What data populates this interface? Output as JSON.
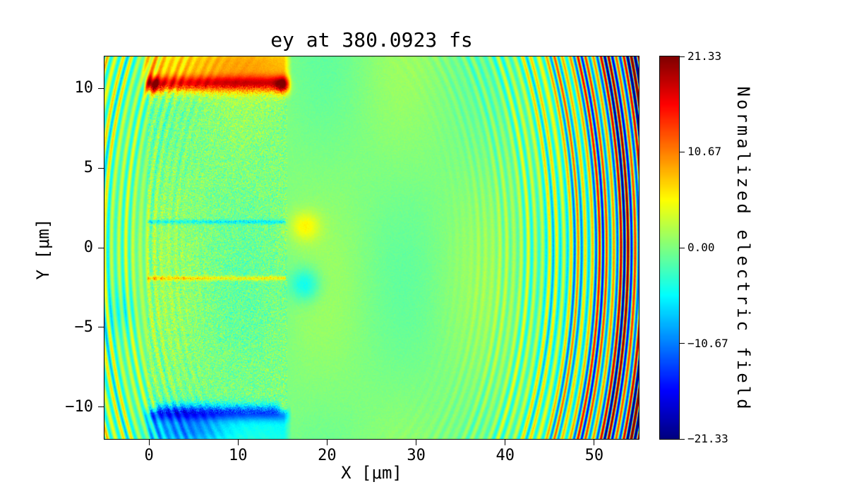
{
  "figure": {
    "background": "#ffffff"
  },
  "chart_data": {
    "type": "heatmap",
    "title": "ey at 380.0923 fs",
    "xlabel": "X [μm]",
    "ylabel": "Y [μm]",
    "xlim": [
      -5,
      55
    ],
    "ylim": [
      -12,
      12
    ],
    "grid": false,
    "x_ticks": {
      "values": [
        0,
        10,
        20,
        30,
        40,
        50
      ],
      "labels": [
        "0",
        "10",
        "20",
        "30",
        "40",
        "50"
      ]
    },
    "y_ticks": {
      "values": [
        10,
        5,
        0,
        -5,
        -10
      ],
      "labels": [
        "10",
        "5",
        "0",
        "−5",
        "−10"
      ]
    },
    "colormap": "jet",
    "colorbar": {
      "label": "Normalized electric field",
      "vmin": -21.33,
      "vmax": 21.33,
      "ticks": [
        21.33,
        10.67,
        0,
        -10.67,
        -21.33
      ],
      "tick_labels": [
        "21.33",
        "10.67",
        "0.00",
        "−10.67",
        "−21.33"
      ]
    },
    "field": {
      "background_level": 0,
      "noise_background": 0.6,
      "mottle_amp": 1.2,
      "target": {
        "x0": 0,
        "x1": 15.3,
        "y0": -10.2,
        "y1": 10.0,
        "noise": 4.5
      },
      "bands": [
        {
          "name": "top-hot-band",
          "x0": -0.2,
          "x1": 15.6,
          "yc": 10.3,
          "sigma": 0.5,
          "amp": 13
        },
        {
          "name": "top-halo",
          "x0": -0.5,
          "x1": 15.6,
          "yc": 11.5,
          "sigma": 1.5,
          "amp": 8
        },
        {
          "name": "bottom-cold-band",
          "x0": -0.2,
          "x1": 15.6,
          "yc": -10.35,
          "sigma": 0.5,
          "amp": -11
        },
        {
          "name": "bottom-halo",
          "x0": 0,
          "x1": 15.6,
          "yc": -11.5,
          "sigma": 1.3,
          "amp": -5
        }
      ],
      "lines": [
        {
          "name": "upper-channel-line",
          "yc": 1.62,
          "sigma": 0.13,
          "amp": -5,
          "x0": -0.2,
          "x1": 15.4
        },
        {
          "name": "lower-channel-line",
          "yc": -1.92,
          "sigma": 0.13,
          "amp": 6.5,
          "x0": -0.2,
          "x1": 15.4
        }
      ],
      "spots": [
        {
          "name": "target-top-left-hotspot",
          "x": 0.5,
          "y": 10.15,
          "sx": 0.8,
          "sy": 0.5,
          "amp": 9
        },
        {
          "name": "target-top-right-hotspot",
          "x": 15.0,
          "y": 10.15,
          "sx": 0.8,
          "sy": 0.5,
          "amp": 9
        },
        {
          "name": "target-bottom-left-hotspot",
          "x": 0.4,
          "y": -10.1,
          "sx": 0.55,
          "sy": 0.4,
          "amp": 8
        },
        {
          "name": "target-bottom-right-hotspot",
          "x": 15.1,
          "y": -10.1,
          "sx": 0.55,
          "sy": 0.4,
          "amp": 8
        },
        {
          "name": "channel-upper-exit-blob",
          "x": 17.5,
          "y": 1.35,
          "sx": 1.7,
          "sy": 0.95,
          "amp": 5
        },
        {
          "name": "channel-lower-exit-blob",
          "x": 17.5,
          "y": -2.3,
          "sx": 1.7,
          "sy": 1.05,
          "amp": -5.5
        },
        {
          "name": "bottom-halo-blob",
          "x": 4.5,
          "y": -11.4,
          "sx": 4.0,
          "sy": 1.2,
          "amp": -5
        },
        {
          "name": "left-edge-cool-smudge",
          "x": -3.2,
          "y": -4.0,
          "sx": 1.6,
          "sy": 1.5,
          "amp": -2.5
        }
      ],
      "wavefronts": {
        "xc": 20,
        "yc": 0,
        "wavelength": 0.8,
        "amp_max": 20,
        "r_start": 10,
        "r_ramp": 25,
        "ramp_pow": 2.5,
        "amp_cap": 1.2,
        "mod_amp": 0.35,
        "mod_freq": 2.3
      }
    }
  }
}
